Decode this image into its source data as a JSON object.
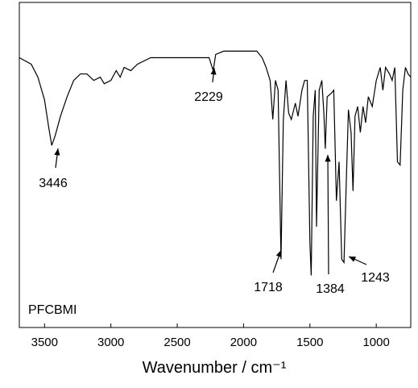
{
  "chart_data": {
    "type": "line",
    "x_label": "Wavenumber / cm⁻¹",
    "sample_label": "PFCBMI",
    "annotations": [
      "3446",
      "2229",
      "1718",
      "1384",
      "1243"
    ],
    "color": "#000000",
    "xlim": [
      3690,
      740
    ],
    "ylim": [
      0,
      100
    ],
    "xticks": [
      3500,
      3000,
      2500,
      2000,
      1500,
      1000
    ],
    "x": [
      3690,
      3600,
      3550,
      3500,
      3470,
      3446,
      3420,
      3380,
      3330,
      3280,
      3230,
      3180,
      3130,
      3080,
      3050,
      3000,
      2960,
      2930,
      2900,
      2850,
      2800,
      2700,
      2600,
      2500,
      2400,
      2300,
      2260,
      2229,
      2210,
      2150,
      2050,
      2000,
      1950,
      1900,
      1860,
      1830,
      1800,
      1780,
      1760,
      1740,
      1718,
      1700,
      1680,
      1660,
      1640,
      1610,
      1590,
      1560,
      1540,
      1520,
      1500,
      1490,
      1475,
      1460,
      1450,
      1430,
      1410,
      1395,
      1384,
      1370,
      1340,
      1320,
      1300,
      1280,
      1260,
      1243,
      1225,
      1210,
      1190,
      1175,
      1160,
      1140,
      1120,
      1100,
      1080,
      1060,
      1030,
      1000,
      970,
      950,
      930,
      900,
      880,
      860,
      840,
      820,
      800,
      780,
      760,
      740
    ],
    "values": [
      83,
      81,
      77,
      70,
      62,
      56,
      59,
      65,
      71,
      76,
      78,
      78,
      76,
      77,
      75,
      76,
      79,
      77,
      80,
      79,
      81,
      83,
      83,
      83,
      83,
      83,
      83,
      79,
      84,
      85,
      85,
      85,
      85,
      85,
      83,
      80,
      76,
      64,
      76,
      73,
      21,
      64,
      76,
      66,
      64,
      69,
      65,
      73,
      76,
      76,
      26,
      16,
      65,
      73,
      31,
      73,
      76,
      66,
      55,
      71,
      72,
      73,
      39,
      51,
      21,
      20,
      46,
      67,
      60,
      42,
      65,
      68,
      60,
      68,
      63,
      71,
      68,
      76,
      80,
      73,
      80,
      78,
      76,
      80,
      51,
      50,
      73,
      80,
      78,
      77
    ]
  }
}
